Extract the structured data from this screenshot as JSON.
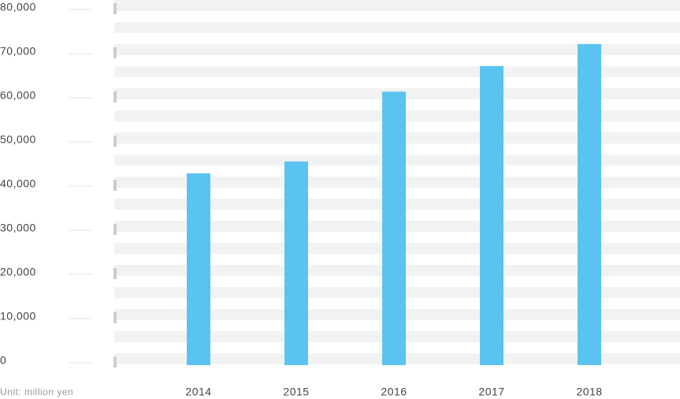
{
  "chart_data": {
    "type": "bar",
    "categories": [
      "2014",
      "2015",
      "2016",
      "2017",
      "2018"
    ],
    "values": [
      42700,
      45400,
      61200,
      67000,
      72000
    ],
    "color": "#5bc3f0",
    "ylim": [
      0,
      80000
    ],
    "yticks": [
      0,
      {
        "value": 10000,
        "label": "10,000"
      },
      {
        "value": 20000,
        "label": "20,000"
      },
      {
        "value": 30000,
        "label": "30,000"
      },
      {
        "value": 40000,
        "label": "40,000"
      },
      {
        "value": 50000,
        "label": "50,000"
      },
      {
        "value": 60000,
        "label": "60,000"
      },
      {
        "value": 70000,
        "label": "70,000"
      },
      {
        "value": 80000,
        "label": "80,000"
      }
    ],
    "unit_label": "Unit: million yen"
  }
}
